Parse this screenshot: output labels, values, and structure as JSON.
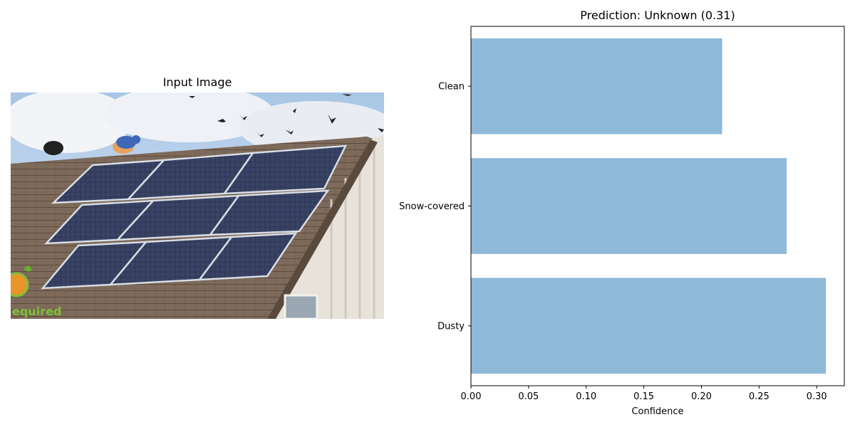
{
  "image_panel": {
    "title": "Input Image",
    "watermark_text": "equired"
  },
  "chart_data": {
    "type": "bar",
    "orientation": "horizontal",
    "title": "Prediction: Unknown (0.31)",
    "xlabel": "Confidence",
    "ylabel": "",
    "categories": [
      "Clean",
      "Snow-covered",
      "Dusty"
    ],
    "values": [
      0.218,
      0.274,
      0.308
    ],
    "xlim": [
      0,
      0.324
    ],
    "xticks": [
      "0.00",
      "0.05",
      "0.10",
      "0.15",
      "0.20",
      "0.25",
      "0.30"
    ],
    "bar_color": "#8fb9d9",
    "grid": false
  }
}
